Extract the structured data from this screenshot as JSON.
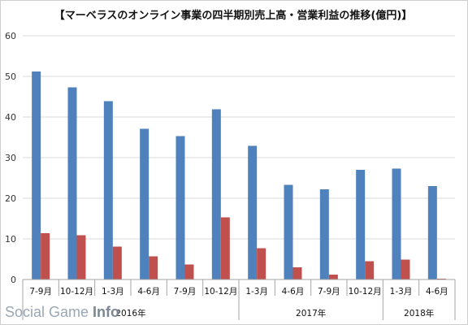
{
  "chart_data": {
    "type": "bar",
    "title": "【マーベラスのオンライン事業の四半期別売上高・営業利益の推移(億円)】",
    "ylim": [
      0,
      60
    ],
    "yticks": [
      0,
      10,
      20,
      30,
      40,
      50,
      60
    ],
    "grid": true,
    "categories": [
      "7-9月",
      "10-12月",
      "1-3月",
      "4-6月",
      "7-9月",
      "10-12月",
      "1-3月",
      "4-6月",
      "7-9月",
      "10-12月",
      "1-3月",
      "4-6月"
    ],
    "year_groups": [
      {
        "label": "2016年",
        "span": [
          0,
          5
        ]
      },
      {
        "label": "2017年",
        "span": [
          6,
          9
        ]
      },
      {
        "label": "2018年",
        "span": [
          10,
          11
        ]
      }
    ],
    "series": [
      {
        "color": "#4f81bd",
        "values": [
          51.2,
          47.3,
          43.9,
          37.1,
          35.3,
          41.9,
          32.9,
          23.3,
          22.2,
          27.0,
          27.3,
          23.0
        ]
      },
      {
        "color": "#c0504d",
        "values": [
          11.4,
          10.9,
          8.1,
          5.7,
          3.7,
          15.3,
          7.7,
          3.0,
          1.2,
          4.5,
          4.9,
          0.2
        ]
      }
    ]
  },
  "watermark": {
    "light": "Social Game ",
    "strong": "Info"
  }
}
